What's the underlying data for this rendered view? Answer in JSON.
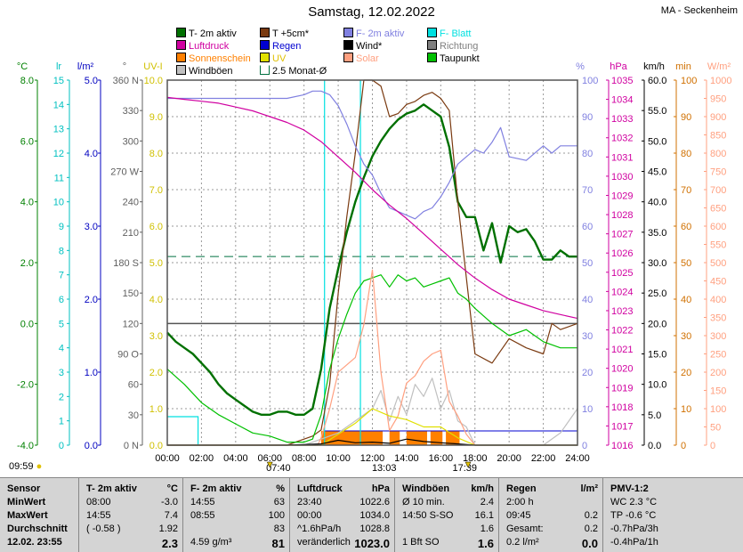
{
  "title": "Samstag, 12.02.2022",
  "station": "MA - Seckenheim",
  "legend": [
    {
      "label": "T- 2m aktiv",
      "color": "#007000",
      "shape": "box"
    },
    {
      "label": "T +5cm*",
      "color": "#7a3a10",
      "shape": "box"
    },
    {
      "label": "F- 2m aktiv",
      "color": "#8080e0",
      "shape": "box"
    },
    {
      "label": "F- Blatt",
      "color": "#00e0e0",
      "shape": "box"
    },
    {
      "label": "Luftdruck",
      "color": "#d000a0",
      "shape": "box"
    },
    {
      "label": "Regen",
      "color": "#0000d0",
      "shape": "box"
    },
    {
      "label": "Wind*",
      "color": "#000000",
      "shape": "box"
    },
    {
      "label": "Richtung",
      "color": "#808080",
      "shape": "box"
    },
    {
      "label": "Sonnenschein",
      "color": "#ff8000",
      "shape": "box"
    },
    {
      "label": "UV",
      "color": "#e0e000",
      "shape": "box"
    },
    {
      "label": "Solar",
      "color": "#ffa080",
      "shape": "box"
    },
    {
      "label": "Taupunkt",
      "color": "#00c000",
      "shape": "box"
    },
    {
      "label": "Windböen",
      "color": "#c0c0c0",
      "shape": "box"
    },
    {
      "label": "2.5 Monat-Ø",
      "color": "#007040",
      "shape": "bracket"
    }
  ],
  "axis_units": {
    "temp": "°C",
    "lr": "lr",
    "lm2": "l/m²",
    "dir": "°",
    "uv": "UV-I",
    "hum": "%",
    "hpa": "hPa",
    "kmh": "km/h",
    "min": "min",
    "wm2": "W/m²"
  },
  "axis_ticks": {
    "temp": [
      "8.0",
      "6.0",
      "4.0",
      "2.0",
      "0.0",
      "-2.0",
      "-4.0"
    ],
    "lr": [
      "15",
      "14",
      "13",
      "12",
      "11",
      "10",
      "9",
      "8",
      "7",
      "6",
      "5",
      "4",
      "3",
      "2",
      "1",
      "0"
    ],
    "lm2": [
      "5.0",
      "4.0",
      "3.0",
      "2.0",
      "1.0",
      "0.0"
    ],
    "dir": [
      "360 N",
      "330",
      "300",
      "270 W",
      "240",
      "210",
      "180 S",
      "150",
      "120",
      "90 O",
      "60",
      "30",
      "0 N"
    ],
    "uv": [
      "10.0",
      "9.0",
      "8.0",
      "7.0",
      "6.0",
      "5.0",
      "4.0",
      "3.0",
      "2.0",
      "1.0",
      "0.0"
    ],
    "hum": [
      "100",
      "90",
      "80",
      "70",
      "60",
      "50",
      "40",
      "30",
      "20",
      "10",
      "0"
    ],
    "hpa": [
      "1035",
      "1034",
      "1033",
      "1032",
      "1031",
      "1030",
      "1029",
      "1028",
      "1027",
      "1026",
      "1025",
      "1024",
      "1023",
      "1022",
      "1021",
      "1020",
      "1019",
      "1018",
      "1017",
      "1016"
    ],
    "kmh": [
      "60.0",
      "55.0",
      "50.0",
      "45.0",
      "40.0",
      "35.0",
      "30.0",
      "25.0",
      "20.0",
      "15.0",
      "10.0",
      "5.0",
      "0.0"
    ],
    "min": [
      "100",
      "90",
      "80",
      "70",
      "60",
      "50",
      "40",
      "30",
      "20",
      "10",
      "0"
    ],
    "wm2": [
      "1000",
      "950",
      "900",
      "850",
      "800",
      "750",
      "700",
      "650",
      "600",
      "550",
      "500",
      "450",
      "400",
      "350",
      "300",
      "250",
      "200",
      "150",
      "100",
      "50",
      "0"
    ]
  },
  "x_ticks": [
    "00:00",
    "02:00",
    "04:00",
    "06:00",
    "08:00",
    "10:00",
    "12:00",
    "14:00",
    "16:00",
    "18:00",
    "20:00",
    "22:00",
    "24:00"
  ],
  "sun_markers": {
    "sunrise": "09:59",
    "t1": "07:40",
    "t2": "13:03",
    "t3": "17:39"
  },
  "chart_data": {
    "type": "line",
    "x_unit": "hours",
    "xlim": [
      0,
      24
    ],
    "series": [
      {
        "name": "T- 2m aktiv",
        "axis": "°C",
        "color": "#007000",
        "x": [
          0,
          0.5,
          1,
          1.5,
          2,
          2.5,
          3,
          3.5,
          4,
          4.5,
          5,
          5.5,
          6,
          6.5,
          7,
          7.5,
          8,
          8.5,
          9,
          9.5,
          10,
          10.5,
          11,
          11.5,
          12,
          12.5,
          13,
          13.5,
          14,
          14.5,
          15,
          15.5,
          16,
          16.5,
          17,
          17.5,
          18,
          18.5,
          19,
          19.5,
          20,
          20.5,
          21,
          21.5,
          22,
          22.5,
          23,
          23.5,
          24
        ],
        "y": [
          -0.3,
          -0.6,
          -0.8,
          -1.0,
          -1.3,
          -1.6,
          -2.0,
          -2.3,
          -2.5,
          -2.7,
          -2.9,
          -3.0,
          -3.0,
          -2.9,
          -2.9,
          -3.0,
          -3.0,
          -2.8,
          -1.5,
          0.5,
          1.8,
          3.0,
          4.0,
          4.8,
          5.5,
          6.0,
          6.4,
          6.7,
          6.9,
          7.0,
          7.2,
          7.0,
          6.8,
          5.8,
          4.0,
          3.5,
          3.5,
          2.4,
          3.3,
          2.0,
          3.2,
          3.0,
          3.1,
          2.7,
          2.1,
          2.1,
          2.4,
          2.2,
          2.2
        ]
      },
      {
        "name": "T +5cm*",
        "axis": "°C",
        "color": "#7a3a10",
        "x": [
          0,
          1,
          2,
          3,
          4,
          5,
          6,
          7,
          8,
          8.5,
          9,
          9.5,
          10,
          10.5,
          11,
          11.5,
          12,
          12.5,
          13,
          13.5,
          14,
          14.5,
          15,
          15.5,
          16,
          16.5,
          17,
          17.5,
          18,
          19,
          20,
          21,
          22,
          22.5,
          23,
          24
        ],
        "y": [
          -4.0,
          -4.0,
          -4.0,
          -4.0,
          -4.0,
          -4.0,
          -4.0,
          -4.0,
          -3.8,
          -3.7,
          -3.5,
          -2.0,
          1.0,
          3.5,
          5.6,
          8.0,
          8.0,
          7.8,
          6.8,
          6.9,
          7.2,
          7.3,
          7.5,
          7.6,
          7.4,
          7.0,
          4.0,
          1.5,
          -1.0,
          -1.3,
          -0.5,
          -0.8,
          -1.0,
          0.0,
          -0.2,
          0.0
        ]
      },
      {
        "name": "F- 2m aktiv",
        "axis": "%",
        "color": "#8080e0",
        "x": [
          0,
          1,
          2,
          3,
          4,
          5,
          6,
          7,
          8,
          8.5,
          9,
          9.5,
          10,
          10.5,
          11,
          11.5,
          12,
          12.5,
          13,
          13.5,
          14,
          14.5,
          15,
          15.5,
          16,
          16.5,
          17,
          17.5,
          18,
          18.5,
          19,
          19.5,
          20,
          21,
          22,
          22.5,
          23,
          24
        ],
        "y": [
          95,
          95,
          95,
          95,
          95,
          95,
          95,
          95,
          96,
          97,
          97,
          96,
          93,
          88,
          82,
          77,
          74,
          69,
          65,
          64,
          63,
          62,
          64,
          65,
          68,
          72,
          77,
          79,
          81,
          80,
          83,
          87,
          79,
          78,
          82,
          80,
          82,
          82
        ]
      },
      {
        "name": "Luftdruck",
        "axis": "hPa",
        "color": "#d000a0",
        "x": [
          0,
          1,
          2,
          3,
          4,
          5,
          6,
          7,
          8,
          9,
          10,
          11,
          12,
          13,
          14,
          15,
          16,
          17,
          18,
          19,
          20,
          21,
          22,
          23,
          24
        ],
        "y": [
          1034.1,
          1034.0,
          1033.9,
          1033.8,
          1033.6,
          1033.4,
          1033.1,
          1032.8,
          1032.4,
          1031.8,
          1031.0,
          1030.2,
          1029.3,
          1028.5,
          1027.8,
          1027.0,
          1026.2,
          1025.4,
          1024.7,
          1024.1,
          1023.6,
          1023.3,
          1023.0,
          1022.8,
          1022.6
        ]
      },
      {
        "name": "Taupunkt",
        "axis": "°C",
        "color": "#00c000",
        "x": [
          0,
          1,
          2,
          3,
          4,
          5,
          6,
          7,
          8,
          8.5,
          9,
          9.5,
          10,
          10.5,
          11,
          11.5,
          12,
          12.5,
          13,
          13.5,
          14,
          14.5,
          15,
          15.5,
          16,
          16.5,
          17,
          17.5,
          18,
          19,
          20,
          21,
          22,
          23,
          24
        ],
        "y": [
          -1.5,
          -2.0,
          -2.6,
          -3.0,
          -3.3,
          -3.6,
          -3.7,
          -3.9,
          -3.9,
          -3.8,
          -3.0,
          -1.5,
          -0.5,
          0.3,
          1.0,
          1.4,
          1.5,
          1.6,
          1.2,
          1.6,
          1.4,
          1.5,
          1.2,
          1.3,
          1.4,
          1.5,
          1.0,
          0.8,
          0.5,
          0.0,
          -0.4,
          -0.2,
          -0.6,
          -0.8,
          -0.8
        ]
      },
      {
        "name": "Windböen",
        "axis": "km/h",
        "color": "#c0c0c0",
        "x": [
          0,
          6,
          8,
          9,
          10,
          11,
          12,
          12.5,
          13,
          13.5,
          14,
          14.5,
          15,
          15.5,
          16,
          16.5,
          17,
          17.5,
          18,
          20,
          22,
          23,
          24
        ],
        "y": [
          0,
          0,
          0,
          1,
          2,
          4,
          6,
          9,
          4,
          8,
          5,
          10,
          8,
          11,
          6,
          9,
          4,
          3,
          0,
          0,
          0,
          2,
          6
        ]
      },
      {
        "name": "Solar",
        "axis": "W/m²",
        "color": "#ffa080",
        "x": [
          0,
          8,
          8.8,
          9,
          9.5,
          10,
          10.5,
          11,
          11.5,
          12,
          12.5,
          13,
          13.5,
          14,
          14.5,
          15,
          15.5,
          16,
          16.5,
          17,
          17.5,
          18,
          24
        ],
        "y": [
          0,
          0,
          0,
          20,
          100,
          200,
          220,
          240,
          330,
          480,
          200,
          40,
          80,
          170,
          190,
          230,
          250,
          260,
          120,
          80,
          30,
          0,
          0
        ]
      },
      {
        "name": "UV",
        "axis": "UV-I",
        "color": "#e0e000",
        "x": [
          0,
          9,
          10,
          11,
          12,
          13,
          14,
          15,
          16,
          17,
          18,
          24
        ],
        "y": [
          0,
          0,
          0.3,
          0.6,
          1.0,
          0.8,
          0.7,
          0.5,
          0.5,
          0.2,
          0,
          0
        ]
      },
      {
        "name": "Wind*",
        "axis": "km/h",
        "color": "#000000",
        "x": [
          0,
          7,
          9,
          10,
          11,
          12,
          13,
          14,
          15,
          16,
          17,
          18,
          24
        ],
        "y": [
          0,
          0,
          0.2,
          0.8,
          0.4,
          0.5,
          0.3,
          1.0,
          0.6,
          0.4,
          0.2,
          0,
          0
        ]
      }
    ],
    "reference_lines": [
      {
        "name": "2.5 Monat-Ø",
        "axis": "°C",
        "y": 2.2,
        "color": "#007040",
        "style": "dashed"
      }
    ],
    "sunshine_blocks": [
      [
        9.0,
        12.6
      ],
      [
        13.0,
        13.6
      ],
      [
        14.0,
        15.2
      ],
      [
        15.4,
        16.1
      ],
      [
        16.3,
        17.1
      ]
    ],
    "leaf_wetness_segments": [
      [
        0.0,
        1.8,
        0.25
      ],
      [
        9.2,
        9.2,
        10
      ],
      [
        11.3,
        11.3,
        10
      ]
    ]
  },
  "table": {
    "columns": [
      {
        "head": "Sensor",
        "unit": "",
        "rows": [
          "MinWert",
          "MaxWert",
          "Durchschnitt",
          "12.02.  23:55"
        ]
      },
      {
        "head": "T- 2m aktiv",
        "unit": "°C",
        "rows": [
          [
            "08:00",
            "-3.0"
          ],
          [
            "14:55",
            "7.4"
          ],
          [
            "( -0.58 )",
            "1.92"
          ],
          [
            "",
            "2.3"
          ]
        ]
      },
      {
        "head": "F- 2m aktiv",
        "unit": "%",
        "rows": [
          [
            "14:55",
            "63"
          ],
          [
            "08:55",
            "100"
          ],
          [
            "",
            "83"
          ],
          [
            "4.59 g/m³",
            "81"
          ]
        ]
      },
      {
        "head": "Luftdruck",
        "unit": "hPa",
        "rows": [
          [
            "23:40",
            "1022.6"
          ],
          [
            "00:00",
            "1034.0"
          ],
          [
            "^1.6hPa/h",
            "1028.8"
          ],
          [
            "veränderlich",
            "1023.0"
          ]
        ]
      },
      {
        "head": "Windböen",
        "unit": "km/h",
        "rows": [
          [
            "Ø 10 min.",
            "2.4"
          ],
          [
            "14:50   S-SO",
            "16.1"
          ],
          [
            "",
            "1.6"
          ],
          [
            "1 Bft SO",
            "1.6"
          ]
        ]
      },
      {
        "head": "Regen",
        "unit": "l/m²",
        "rows": [
          [
            "2:00 h",
            ""
          ],
          [
            "09:45",
            "0.2"
          ],
          [
            "Gesamt:",
            "0.2"
          ],
          [
            "0.2 l/m²",
            "0.0"
          ]
        ]
      },
      {
        "head": "PMV-1:2",
        "unit": "",
        "rows": [
          "WC 2.3 °C",
          "TP -0.6 °C",
          "-0.7hPa/3h",
          "-0.4hPa/1h"
        ]
      }
    ]
  }
}
